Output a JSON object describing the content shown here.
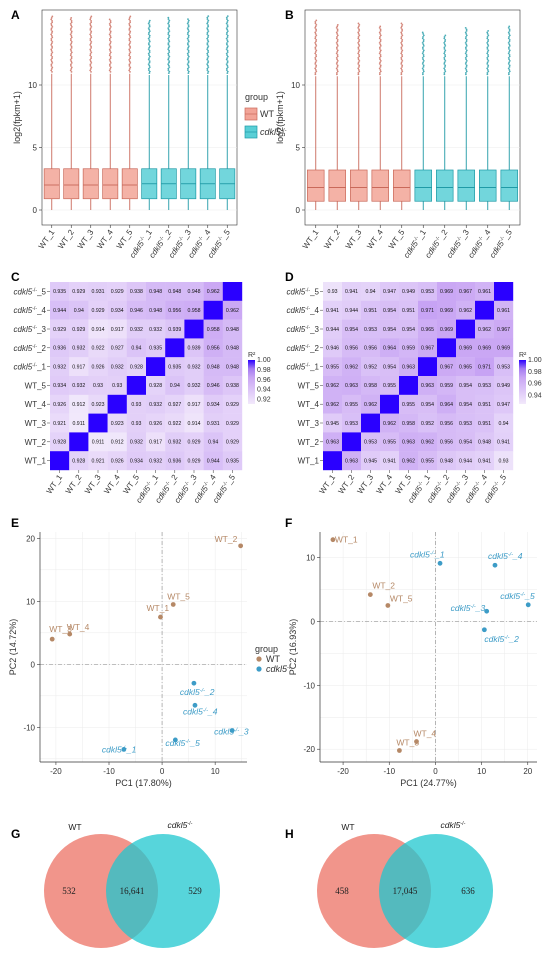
{
  "colors": {
    "wt": "#f2a497",
    "wt_dark": "#c9695a",
    "cdkl": "#59cfd6",
    "cdkl_dark": "#1f9aa6",
    "pca_wt": "#b58866",
    "pca_cdkl": "#3d9cc7",
    "grid": "#ebebeb",
    "heat_low": "#f2e9fb",
    "heat_high": "#2a00ff"
  },
  "chart_data": [
    {
      "panel": "A",
      "type": "box",
      "ylabel": "log2(fpkm+1)",
      "yticks": [
        0,
        5,
        10
      ],
      "ylim": [
        -1.2,
        16
      ],
      "categories": [
        "WT_1",
        "WT_2",
        "WT_3",
        "WT_4",
        "WT_5",
        "cdkl5-/-_1",
        "cdkl5-/-_2",
        "cdkl5-/-_3",
        "cdkl5-/-_4",
        "cdkl5-/-_5"
      ],
      "groups": [
        "WT",
        "WT",
        "WT",
        "WT",
        "WT",
        "cdkl5",
        "cdkl5",
        "cdkl5",
        "cdkl5",
        "cdkl5"
      ],
      "boxes": [
        {
          "q1": 0.9,
          "med": 2.0,
          "q3": 3.3,
          "whi": 10.9,
          "max": 15.6
        },
        {
          "q1": 0.9,
          "med": 2.0,
          "q3": 3.3,
          "whi": 10.9,
          "max": 15.4
        },
        {
          "q1": 0.9,
          "med": 2.0,
          "q3": 3.3,
          "whi": 10.9,
          "max": 15.6
        },
        {
          "q1": 0.9,
          "med": 2.0,
          "q3": 3.3,
          "whi": 10.9,
          "max": 15.3
        },
        {
          "q1": 0.9,
          "med": 2.0,
          "q3": 3.3,
          "whi": 10.9,
          "max": 15.6
        },
        {
          "q1": 0.9,
          "med": 2.1,
          "q3": 3.3,
          "whi": 10.8,
          "max": 15.2
        },
        {
          "q1": 0.9,
          "med": 2.1,
          "q3": 3.3,
          "whi": 10.8,
          "max": 15.4
        },
        {
          "q1": 0.9,
          "med": 2.1,
          "q3": 3.3,
          "whi": 10.8,
          "max": 15.3
        },
        {
          "q1": 0.9,
          "med": 2.1,
          "q3": 3.3,
          "whi": 10.8,
          "max": 15.6
        },
        {
          "q1": 0.9,
          "med": 2.1,
          "q3": 3.3,
          "whi": 10.8,
          "max": 15.6
        }
      ],
      "legend": {
        "title": "group",
        "items": [
          "WT",
          "cdkl5-/-"
        ]
      }
    },
    {
      "panel": "B",
      "type": "box",
      "ylabel": "log2(fpkm+1)",
      "yticks": [
        0,
        5,
        10
      ],
      "ylim": [
        -1.2,
        16
      ],
      "categories": [
        "WT_1",
        "WT_2",
        "WT_3",
        "WT_4",
        "WT_5",
        "cdkl5-/-_1",
        "cdkl5-/-_2",
        "cdkl5-/-_3",
        "cdkl5-/-_4",
        "cdkl5-/-_5"
      ],
      "groups": [
        "WT",
        "WT",
        "WT",
        "WT",
        "WT",
        "cdkl5",
        "cdkl5",
        "cdkl5",
        "cdkl5",
        "cdkl5"
      ],
      "boxes": [
        {
          "q1": 0.7,
          "med": 1.8,
          "q3": 3.2,
          "whi": 10.7,
          "max": 15.2
        },
        {
          "q1": 0.7,
          "med": 1.8,
          "q3": 3.2,
          "whi": 10.7,
          "max": 14.9
        },
        {
          "q1": 0.7,
          "med": 1.8,
          "q3": 3.2,
          "whi": 10.7,
          "max": 15.0
        },
        {
          "q1": 0.7,
          "med": 1.8,
          "q3": 3.2,
          "whi": 10.7,
          "max": 14.7
        },
        {
          "q1": 0.7,
          "med": 1.8,
          "q3": 3.2,
          "whi": 10.7,
          "max": 15.0
        },
        {
          "q1": 0.7,
          "med": 1.8,
          "q3": 3.2,
          "whi": 10.7,
          "max": 14.3
        },
        {
          "q1": 0.7,
          "med": 1.8,
          "q3": 3.2,
          "whi": 10.7,
          "max": 14.0
        },
        {
          "q1": 0.7,
          "med": 1.8,
          "q3": 3.2,
          "whi": 10.7,
          "max": 14.6
        },
        {
          "q1": 0.7,
          "med": 1.8,
          "q3": 3.2,
          "whi": 10.7,
          "max": 14.4
        },
        {
          "q1": 0.7,
          "med": 1.8,
          "q3": 3.2,
          "whi": 10.7,
          "max": 14.7
        }
      ]
    },
    {
      "panel": "C",
      "type": "heatmap",
      "rows": [
        "cdkl5-/-_5",
        "cdkl5-/-_4",
        "cdkl5-/-_3",
        "cdkl5-/-_2",
        "cdkl5-/-_1",
        "WT_5",
        "WT_4",
        "WT_3",
        "WT_2",
        "WT_1"
      ],
      "cols": [
        "WT_1",
        "WT_2",
        "WT_3",
        "WT_4",
        "WT_5",
        "cdkl5-/-_1",
        "cdkl5-/-_2",
        "cdkl5-/-_3",
        "cdkl5-/-_4",
        "cdkl5-/-_5"
      ],
      "values": [
        [
          "0.935",
          "0.929",
          "0.931",
          "0.929",
          "0.938",
          "0.948",
          "0.948",
          "0.948",
          "0.962",
          "1"
        ],
        [
          "0.944",
          "0.94",
          "0.929",
          "0.934",
          "0.946",
          "0.948",
          "0.956",
          "0.958",
          "1",
          "0.962"
        ],
        [
          "0.929",
          "0.929",
          "0.914",
          "0.917",
          "0.932",
          "0.932",
          "0.939",
          "1",
          "0.958",
          "0.948"
        ],
        [
          "0.936",
          "0.932",
          "0.922",
          "0.927",
          "0.94",
          "0.935",
          "1",
          "0.939",
          "0.956",
          "0.948"
        ],
        [
          "0.932",
          "0.917",
          "0.926",
          "0.932",
          "0.928",
          "1",
          "0.935",
          "0.932",
          "0.948",
          "0.948"
        ],
        [
          "0.934",
          "0.932",
          "0.93",
          "0.93",
          "1",
          "0.928",
          "0.94",
          "0.932",
          "0.946",
          "0.938"
        ],
        [
          "0.926",
          "0.912",
          "0.923",
          "1",
          "0.93",
          "0.932",
          "0.927",
          "0.917",
          "0.934",
          "0.929"
        ],
        [
          "0.921",
          "0.911",
          "1",
          "0.923",
          "0.93",
          "0.926",
          "0.922",
          "0.914",
          "0.931",
          "0.929"
        ],
        [
          "0.928",
          "1",
          "0.911",
          "0.912",
          "0.932",
          "0.917",
          "0.932",
          "0.929",
          "0.94",
          "0.929"
        ],
        [
          "1",
          "0.928",
          "0.921",
          "0.926",
          "0.934",
          "0.932",
          "0.936",
          "0.929",
          "0.944",
          "0.935"
        ]
      ],
      "range": [
        0.91,
        1.0
      ],
      "legend_title": "R²",
      "legend_ticks": [
        "1.00",
        "0.98",
        "0.96",
        "0.94",
        "0.92"
      ]
    },
    {
      "panel": "D",
      "type": "heatmap",
      "rows": [
        "cdkl5-/-_5",
        "cdkl5-/-_4",
        "cdkl5-/-_3",
        "cdkl5-/-_2",
        "cdkl5-/-_1",
        "WT_5",
        "WT_4",
        "WT_3",
        "WT_2",
        "WT_1"
      ],
      "cols": [
        "WT_1",
        "WT_2",
        "WT_3",
        "WT_4",
        "WT_5",
        "cdkl5-/-_1",
        "cdkl5-/-_2",
        "cdkl5-/-_3",
        "cdkl5-/-_4",
        "cdkl5-/-_5"
      ],
      "values": [
        [
          "0.93",
          "0.941",
          "0.94",
          "0.947",
          "0.949",
          "0.953",
          "0.969",
          "0.967",
          "0.961",
          "1"
        ],
        [
          "0.941",
          "0.944",
          "0.951",
          "0.954",
          "0.951",
          "0.971",
          "0.969",
          "0.962",
          "1",
          "0.961"
        ],
        [
          "0.944",
          "0.954",
          "0.953",
          "0.954",
          "0.954",
          "0.965",
          "0.969",
          "1",
          "0.962",
          "0.967"
        ],
        [
          "0.946",
          "0.956",
          "0.956",
          "0.964",
          "0.959",
          "0.967",
          "1",
          "0.969",
          "0.969",
          "0.969"
        ],
        [
          "0.955",
          "0.962",
          "0.952",
          "0.954",
          "0.963",
          "1",
          "0.967",
          "0.965",
          "0.971",
          "0.953"
        ],
        [
          "0.962",
          "0.963",
          "0.958",
          "0.955",
          "1",
          "0.963",
          "0.959",
          "0.954",
          "0.953",
          "0.949"
        ],
        [
          "0.962",
          "0.955",
          "0.962",
          "1",
          "0.955",
          "0.954",
          "0.964",
          "0.954",
          "0.951",
          "0.947"
        ],
        [
          "0.945",
          "0.953",
          "1",
          "0.962",
          "0.958",
          "0.952",
          "0.956",
          "0.953",
          "0.951",
          "0.94"
        ],
        [
          "0.963",
          "1",
          "0.953",
          "0.955",
          "0.963",
          "0.962",
          "0.956",
          "0.954",
          "0.948",
          "0.941"
        ],
        [
          "1",
          "0.963",
          "0.945",
          "0.941",
          "0.962",
          "0.955",
          "0.948",
          "0.944",
          "0.941",
          "0.93"
        ]
      ],
      "range": [
        0.925,
        1.0
      ],
      "legend_title": "R²",
      "legend_ticks": [
        "1.00",
        "0.98",
        "0.96",
        "0.94"
      ]
    },
    {
      "panel": "E",
      "type": "scatter",
      "xlabel": "PC1 (17.80%)",
      "ylabel": "PC2 (14.72%)",
      "xlim": [
        -23,
        16
      ],
      "ylim": [
        -15.5,
        21
      ],
      "xticks": [
        -20,
        -10,
        0,
        10
      ],
      "yticks": [
        -10,
        0,
        10,
        20
      ],
      "points": [
        {
          "label": "WT_1",
          "x": -0.3,
          "y": 7.5,
          "group": "WT"
        },
        {
          "label": "WT_2",
          "x": 14.8,
          "y": 18.8,
          "group": "WT"
        },
        {
          "label": "WT_3",
          "x": -20.7,
          "y": 4.0,
          "group": "WT"
        },
        {
          "label": "WT_4",
          "x": -17.4,
          "y": 4.8,
          "group": "WT"
        },
        {
          "label": "WT_5",
          "x": 2.1,
          "y": 9.5,
          "group": "WT"
        },
        {
          "label": "cdkl5-/-_1",
          "x": -7.2,
          "y": -13.5,
          "group": "cdkl5"
        },
        {
          "label": "cdkl5-/-_2",
          "x": 6.0,
          "y": -3.0,
          "group": "cdkl5"
        },
        {
          "label": "cdkl5-/-_3",
          "x": 13.2,
          "y": -10.5,
          "group": "cdkl5"
        },
        {
          "label": "cdkl5-/-_4",
          "x": 6.2,
          "y": -6.5,
          "group": "cdkl5"
        },
        {
          "label": "cdkl5-/-_5",
          "x": 2.5,
          "y": -12.0,
          "group": "cdkl5"
        }
      ],
      "legend": {
        "title": "group",
        "items": [
          "WT",
          "cdkl5-/-"
        ]
      }
    },
    {
      "panel": "F",
      "type": "scatter",
      "xlabel": "PC1 (24.77%)",
      "ylabel": "PC2 (16.93%)",
      "xlim": [
        -25,
        22
      ],
      "ylim": [
        -22,
        14
      ],
      "xticks": [
        -20,
        -10,
        0,
        10,
        20
      ],
      "yticks": [
        -20,
        -10,
        0,
        10
      ],
      "points": [
        {
          "label": "WT_1",
          "x": -22.2,
          "y": 12.8,
          "group": "WT"
        },
        {
          "label": "WT_2",
          "x": -14.1,
          "y": 4.2,
          "group": "WT"
        },
        {
          "label": "WT_3",
          "x": -7.8,
          "y": -20.2,
          "group": "WT"
        },
        {
          "label": "WT_4",
          "x": -4.1,
          "y": -18.8,
          "group": "WT"
        },
        {
          "label": "WT_5",
          "x": -10.3,
          "y": 2.5,
          "group": "WT"
        },
        {
          "label": "cdkl5-/-_1",
          "x": 1.0,
          "y": 9.1,
          "group": "cdkl5"
        },
        {
          "label": "cdkl5-/-_2",
          "x": 10.6,
          "y": -1.3,
          "group": "cdkl5"
        },
        {
          "label": "cdkl5-/-_3",
          "x": 11.1,
          "y": 1.6,
          "group": "cdkl5"
        },
        {
          "label": "cdkl5-/-_4",
          "x": 12.9,
          "y": 8.8,
          "group": "cdkl5"
        },
        {
          "label": "cdkl5-/-_5",
          "x": 20.1,
          "y": 2.6,
          "group": "cdkl5"
        }
      ]
    },
    {
      "panel": "G",
      "type": "venn",
      "sets": [
        "WT",
        "cdkl5-/-"
      ],
      "only_a": "532",
      "both": "16,641",
      "only_b": "529"
    },
    {
      "panel": "H",
      "type": "venn",
      "sets": [
        "WT",
        "cdkl5-/-"
      ],
      "only_a": "458",
      "both": "17,045",
      "only_b": "636"
    }
  ]
}
